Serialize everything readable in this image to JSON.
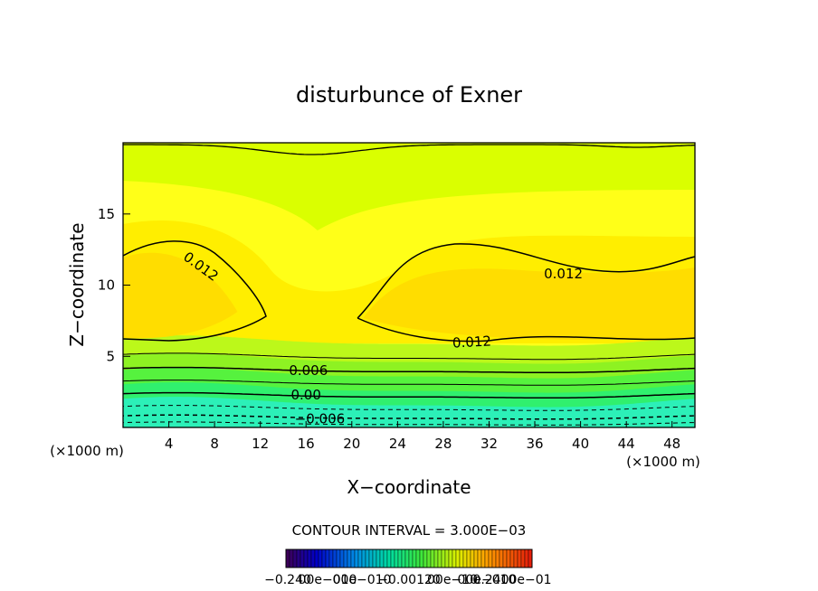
{
  "chart_data": {
    "type": "contour",
    "title": "disturbunce of Exner",
    "xlabel": "X−coordinate",
    "ylabel": "Z−coordinate",
    "x_unit_label": "(×1000 m)",
    "y_unit_label": "(×1000 m)",
    "xlim": [
      0,
      50
    ],
    "ylim": [
      0,
      20
    ],
    "x_ticks": [
      4,
      8,
      12,
      16,
      20,
      24,
      28,
      32,
      36,
      40,
      44,
      48
    ],
    "y_ticks": [
      5,
      10,
      15
    ],
    "contour_interval_text": "CONTOUR INTERVAL = 3.000E−03",
    "contour_interval": 0.003,
    "contour_labels": [
      {
        "text": "0.012",
        "x": 6.8,
        "z": 11.3,
        "angle": 36
      },
      {
        "text": "0.012",
        "x": 38.5,
        "z": 10.8,
        "angle": 0
      },
      {
        "text": "0.012",
        "x": 30.5,
        "z": 6.0,
        "angle": -3
      },
      {
        "text": "0.006",
        "x": 16.2,
        "z": 4.0,
        "angle": 0
      },
      {
        "text": "0.00",
        "x": 16.0,
        "z": 2.3,
        "angle": 0
      },
      {
        "text": "−0.006",
        "x": 17.2,
        "z": 0.6,
        "angle": 0
      }
    ],
    "fill_colors": [
      "#2cf0b8",
      "#30f06e",
      "#56f23e",
      "#8ef222",
      "#bcf81a",
      "#daff00",
      "#ffff18",
      "#ffee00",
      "#ffdd00"
    ],
    "colorbar": {
      "tick_labels": [
        "−0.240",
        "00e−010",
        "00e−010",
        "−0.00120",
        "00e−10",
        "00e−010",
        "0.2400e−01"
      ]
    }
  }
}
